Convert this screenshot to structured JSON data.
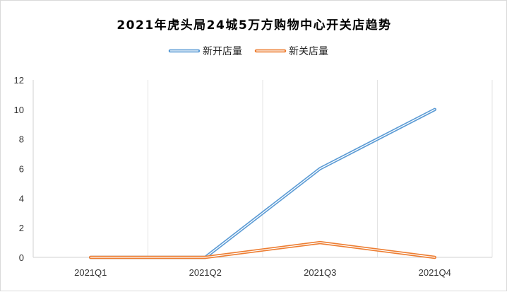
{
  "chart_data": {
    "type": "line",
    "title": "2021年虎头局24城5万方购物中心开关店趋势",
    "categories": [
      "2021Q1",
      "2021Q2",
      "2021Q3",
      "2021Q4"
    ],
    "series": [
      {
        "name": "新开店量",
        "values": [
          0,
          0,
          6,
          10
        ],
        "color": "#5b9bd5"
      },
      {
        "name": "新关店量",
        "values": [
          0,
          0,
          1,
          0
        ],
        "color": "#ed7d31"
      }
    ],
    "ylim": [
      0,
      12
    ],
    "yticks": [
      "0",
      "2",
      "4",
      "6",
      "8",
      "10",
      "12"
    ],
    "grid": "vertical",
    "legend": "top-center",
    "line_style": "double"
  }
}
